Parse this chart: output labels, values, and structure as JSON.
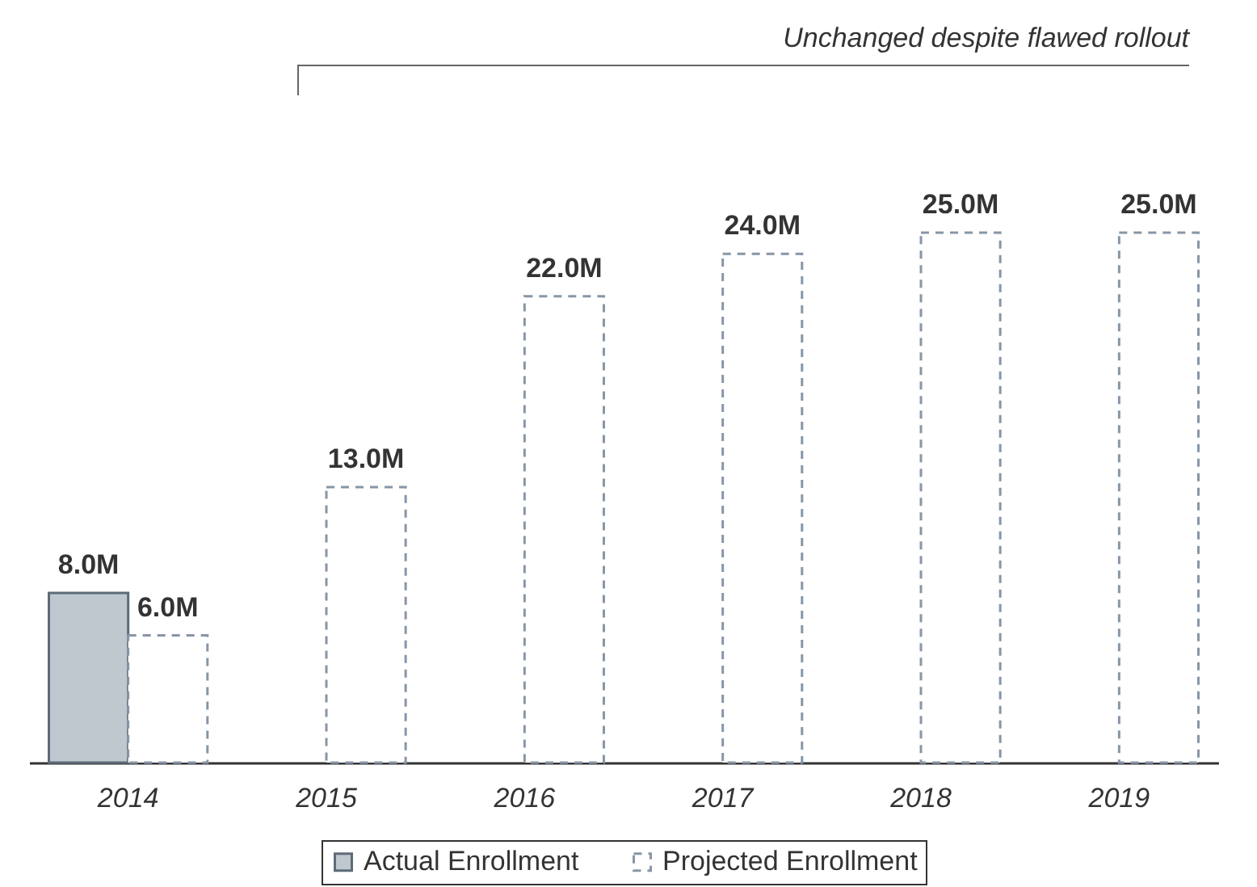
{
  "chart_data": {
    "type": "bar",
    "categories": [
      "2014",
      "2015",
      "2016",
      "2017",
      "2018",
      "2019"
    ],
    "series": [
      {
        "name": "Actual Enrollment",
        "color": "#bfc7cf",
        "values": [
          8.0,
          null,
          null,
          null,
          null,
          null
        ],
        "value_labels": [
          "8.0M",
          null,
          null,
          null,
          null,
          null
        ]
      },
      {
        "name": "Projected Enrollment",
        "color": "#8796a6",
        "line_style": "dashed",
        "values": [
          6.0,
          13.0,
          22.0,
          24.0,
          25.0,
          25.0
        ],
        "value_labels": [
          "6.0M",
          "13.0M",
          "22.0M",
          "24.0M",
          "25.0M",
          "25.0M"
        ]
      }
    ],
    "annotations": [
      "Unchanged despite flawed rollout"
    ],
    "legend": "bottom",
    "grid": false
  }
}
